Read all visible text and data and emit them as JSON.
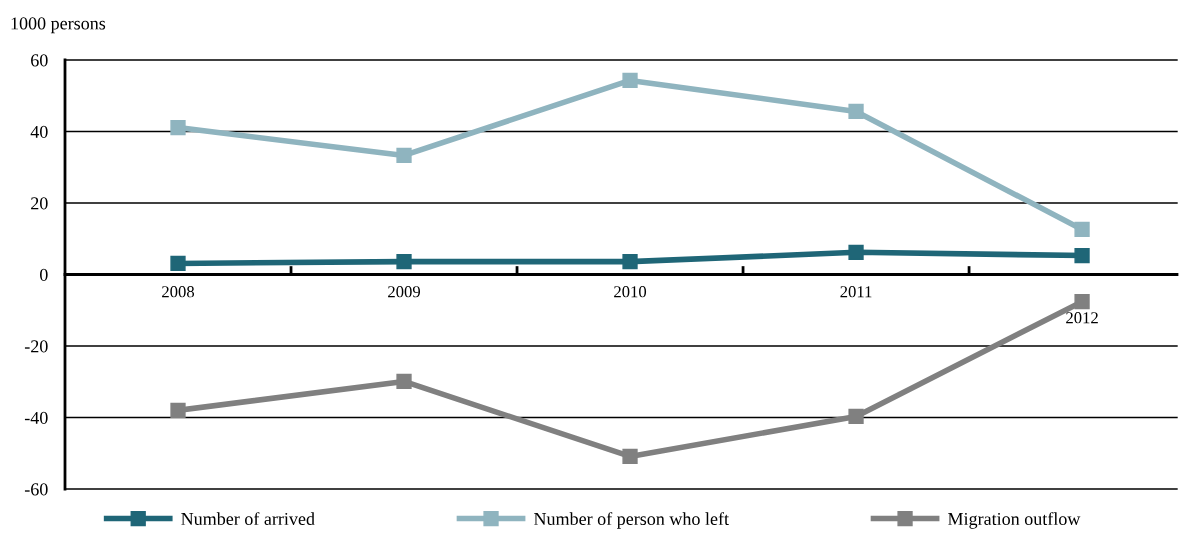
{
  "chart_data": {
    "type": "line",
    "ylabel": "1000 persons",
    "categories": [
      "2008",
      "2009",
      "2010",
      "2011",
      "2012"
    ],
    "series": [
      {
        "name": "Number of arrived",
        "color": "#1f6677",
        "values": [
          3.1,
          3.6,
          3.6,
          6.2,
          5.3
        ]
      },
      {
        "name": "Number of person who left",
        "color": "#8fb4bf",
        "values": [
          41.1,
          33.3,
          54.3,
          45.6,
          12.6
        ]
      },
      {
        "name": "Migration outflow",
        "color": "#808080",
        "values": [
          -38.0,
          -29.9,
          -50.9,
          -39.7,
          -7.6
        ]
      }
    ],
    "ylim": [
      -60,
      60
    ],
    "yticks": [
      -60,
      -40,
      -20,
      0,
      20,
      40,
      60
    ],
    "grid": "y",
    "legend": "bottom",
    "marker": "square",
    "line_style": "solid"
  }
}
